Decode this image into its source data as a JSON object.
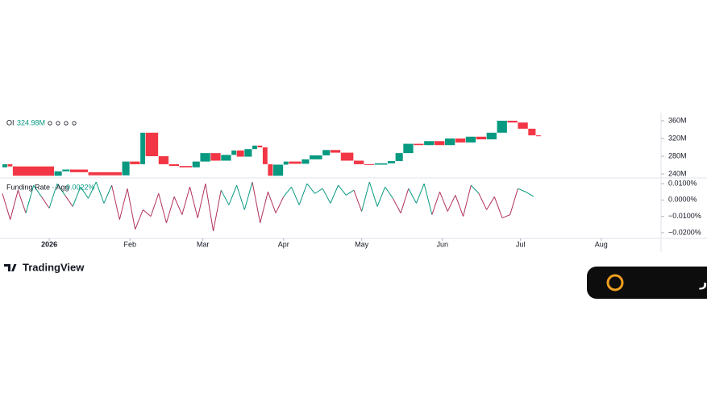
{
  "chart_data": [
    {
      "type": "candlestick",
      "name": "OI",
      "last_value": 324.98,
      "last_value_label": "324.98M",
      "up_color": "#089981",
      "down_color": "#f23645",
      "x": [
        -18,
        -16,
        -14,
        2,
        5,
        8,
        15,
        28,
        31,
        35,
        37,
        42,
        46,
        50,
        55,
        58,
        62,
        66,
        70,
        72,
        75,
        78,
        80,
        82,
        84,
        86,
        90,
        92,
        97,
        100,
        105,
        108,
        112,
        117,
        121,
        125,
        130,
        133,
        136,
        140,
        144,
        148,
        152,
        156,
        160,
        164,
        168,
        172,
        176,
        180,
        184,
        187
      ],
      "open": [
        255,
        262,
        257,
        236,
        246,
        250,
        244,
        237,
        268,
        262,
        333,
        280,
        262,
        258,
        255,
        268,
        287,
        270,
        283,
        293,
        279,
        296,
        304,
        300,
        262,
        236,
        261,
        268,
        263,
        273,
        282,
        294,
        288,
        270,
        262,
        261,
        264,
        269,
        287,
        308,
        305,
        314,
        305,
        320,
        311,
        324,
        318,
        333,
        360,
        356,
        342,
        327
      ],
      "close": [
        262,
        257,
        236,
        246,
        250,
        244,
        237,
        268,
        262,
        333,
        280,
        262,
        258,
        255,
        268,
        287,
        270,
        283,
        293,
        279,
        296,
        304,
        300,
        262,
        236,
        261,
        268,
        263,
        273,
        282,
        294,
        288,
        270,
        262,
        261,
        264,
        269,
        287,
        308,
        305,
        314,
        305,
        320,
        311,
        324,
        318,
        333,
        360,
        356,
        342,
        327,
        325
      ],
      "xlim": [
        -18,
        235
      ],
      "ylim": [
        231,
        378
      ],
      "yticks": [
        {
          "value": 240,
          "label": "240M"
        },
        {
          "value": 280,
          "label": "280M"
        },
        {
          "value": 320,
          "label": "320M"
        },
        {
          "value": 360,
          "label": "360M"
        }
      ]
    },
    {
      "type": "line",
      "name": "Funding Rate · Agg",
      "last_value": 0.0022,
      "last_value_label": "0.0022%",
      "up_color": "#089981",
      "down_color": "#b2325a",
      "x": [
        -18,
        -15,
        -12,
        -9,
        -6,
        -3,
        0,
        3,
        6,
        9,
        12,
        15,
        18,
        21,
        24,
        27,
        30,
        33,
        36,
        39,
        42,
        45,
        48,
        51,
        54,
        57,
        60,
        63,
        66,
        69,
        72,
        75,
        78,
        81,
        84,
        87,
        90,
        93,
        96,
        99,
        102,
        105,
        108,
        111,
        114,
        117,
        120,
        123,
        126,
        129,
        132,
        135,
        138,
        141,
        144,
        147,
        150,
        153,
        156,
        159,
        162,
        165,
        168,
        171,
        174,
        177,
        180,
        183,
        186
      ],
      "values": [
        0.004,
        -0.012,
        0.006,
        -0.008,
        0.009,
        0.002,
        -0.005,
        0.01,
        0.003,
        -0.004,
        0.008,
        0.001,
        0.011,
        -0.002,
        0.009,
        -0.012,
        0.007,
        -0.018,
        -0.006,
        -0.01,
        0.004,
        -0.014,
        0.002,
        -0.009,
        0.008,
        -0.011,
        0.01,
        -0.019,
        0.006,
        -0.003,
        0.009,
        -0.006,
        0.011,
        -0.014,
        0.005,
        -0.008,
        0.002,
        0.008,
        -0.003,
        0.01,
        0.004,
        0.007,
        -0.002,
        0.009,
        0.003,
        0.006,
        -0.007,
        0.011,
        -0.004,
        0.008,
        0.001,
        -0.008,
        0.007,
        -0.002,
        0.01,
        -0.009,
        0.005,
        -0.007,
        0.003,
        -0.01,
        0.009,
        0.004,
        -0.006,
        0.002,
        -0.011,
        -0.009,
        0.007,
        0.005,
        0.0022
      ],
      "xlim": [
        -18,
        235
      ],
      "ylim": [
        -0.0235,
        0.0135
      ],
      "yticks": [
        {
          "value": 0.01,
          "label": "0.0100%"
        },
        {
          "value": 0,
          "label": "0.0000%"
        },
        {
          "value": -0.01,
          "label": "−0.0100%"
        },
        {
          "value": -0.02,
          "label": "−0.0200%"
        }
      ],
      "xticks": [
        {
          "value": 0,
          "label": "2026"
        },
        {
          "value": 31,
          "label": "Feb"
        },
        {
          "value": 59,
          "label": "Mar"
        },
        {
          "value": 90,
          "label": "Apr"
        },
        {
          "value": 120,
          "label": "May"
        },
        {
          "value": 151,
          "label": "Jun"
        },
        {
          "value": 181,
          "label": "Jul"
        },
        {
          "value": 212,
          "label": "Aug"
        }
      ]
    }
  ],
  "brand": "TradingView",
  "badge": "کریپتونگار"
}
